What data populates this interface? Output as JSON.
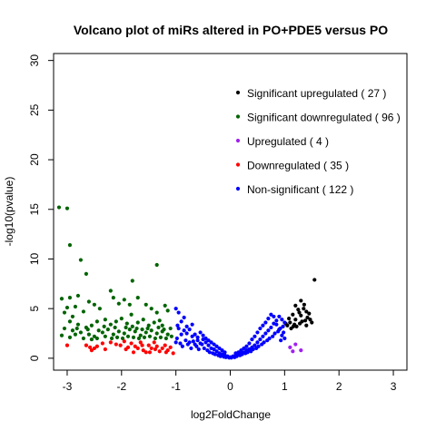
{
  "chart_data": {
    "type": "scatter",
    "title": "Volcano plot of miRs altered in PO+PDE5 versus PO",
    "xlabel": "log2FoldChange",
    "ylabel": "-log10(pvalue)",
    "xlim": [
      -3.25,
      3.25
    ],
    "ylim": [
      -1.2,
      30.7
    ],
    "xticks": [
      -3,
      -2,
      -1,
      0,
      1,
      2,
      3
    ],
    "xtick_labels": [
      "-3",
      "-2",
      "-1",
      "0",
      "1",
      "2",
      "3"
    ],
    "yticks": [
      0,
      5,
      10,
      15,
      20,
      25,
      30
    ],
    "ytick_labels": [
      "0",
      "5",
      "10",
      "15",
      "20",
      "25",
      "30"
    ],
    "grid": false,
    "legend_position": "top-right",
    "series": [
      {
        "name": "Significant upregulated ( 27 )",
        "color": "#000000",
        "points": [
          [
            1.55,
            7.9
          ],
          [
            1.2,
            5.3
          ],
          [
            1.3,
            5.8
          ],
          [
            1.25,
            4.9
          ],
          [
            1.35,
            5.0
          ],
          [
            1.4,
            4.7
          ],
          [
            1.15,
            4.4
          ],
          [
            1.45,
            4.5
          ],
          [
            1.3,
            4.3
          ],
          [
            1.2,
            3.9
          ],
          [
            1.1,
            3.6
          ],
          [
            1.38,
            3.8
          ],
          [
            1.5,
            3.6
          ],
          [
            1.28,
            3.5
          ],
          [
            1.18,
            3.4
          ],
          [
            1.05,
            3.3
          ],
          [
            1.42,
            4.1
          ],
          [
            1.12,
            3.0
          ],
          [
            1.22,
            3.2
          ],
          [
            1.32,
            3.7
          ],
          [
            1.47,
            3.9
          ],
          [
            1.08,
            4.0
          ],
          [
            1.36,
            5.4
          ],
          [
            1.27,
            4.6
          ],
          [
            1.16,
            3.2
          ],
          [
            1.4,
            3.3
          ],
          [
            1.02,
            3.5
          ]
        ]
      },
      {
        "name": "Significant downregulated ( 96 )",
        "color": "#006400",
        "points": [
          [
            -3.15,
            15.2
          ],
          [
            -3.0,
            15.1
          ],
          [
            -2.95,
            11.4
          ],
          [
            -2.75,
            9.9
          ],
          [
            -2.65,
            8.5
          ],
          [
            -1.8,
            7.8
          ],
          [
            -1.35,
            9.4
          ],
          [
            -3.1,
            6.0
          ],
          [
            -2.95,
            6.1
          ],
          [
            -2.8,
            6.3
          ],
          [
            -3.0,
            5.1
          ],
          [
            -2.85,
            5.2
          ],
          [
            -3.05,
            4.6
          ],
          [
            -2.9,
            4.2
          ],
          [
            -2.7,
            4.7
          ],
          [
            -2.6,
            5.7
          ],
          [
            -2.5,
            5.4
          ],
          [
            -2.4,
            5.0
          ],
          [
            -2.2,
            6.8
          ],
          [
            -2.15,
            6.1
          ],
          [
            -2.05,
            5.5
          ],
          [
            -1.95,
            5.9
          ],
          [
            -1.85,
            5.4
          ],
          [
            -1.7,
            6.1
          ],
          [
            -1.55,
            5.4
          ],
          [
            -1.45,
            5.0
          ],
          [
            -1.35,
            4.6
          ],
          [
            -1.2,
            5.3
          ],
          [
            -1.15,
            4.8
          ],
          [
            -2.95,
            3.7
          ],
          [
            -2.8,
            3.4
          ],
          [
            -2.65,
            3.1
          ],
          [
            -2.55,
            3.3
          ],
          [
            -2.45,
            3.7
          ],
          [
            -2.3,
            3.9
          ],
          [
            -2.2,
            3.4
          ],
          [
            -2.1,
            3.7
          ],
          [
            -2.0,
            4.0
          ],
          [
            -1.9,
            3.5
          ],
          [
            -1.8,
            3.2
          ],
          [
            -1.7,
            3.6
          ],
          [
            -1.6,
            3.9
          ],
          [
            -1.5,
            3.3
          ],
          [
            -1.4,
            3.6
          ],
          [
            -1.3,
            3.8
          ],
          [
            -1.25,
            3.3
          ],
          [
            -3.05,
            3.0
          ],
          [
            -2.9,
            2.8
          ],
          [
            -2.75,
            2.6
          ],
          [
            -2.6,
            2.4
          ],
          [
            -2.5,
            2.2
          ],
          [
            -2.35,
            2.6
          ],
          [
            -2.25,
            2.9
          ],
          [
            -2.15,
            2.4
          ],
          [
            -2.05,
            2.7
          ],
          [
            -1.95,
            2.5
          ],
          [
            -1.85,
            2.9
          ],
          [
            -1.75,
            2.7
          ],
          [
            -1.65,
            2.3
          ],
          [
            -1.55,
            2.6
          ],
          [
            -1.45,
            2.8
          ],
          [
            -1.35,
            2.5
          ],
          [
            -1.25,
            2.7
          ],
          [
            -1.15,
            2.4
          ],
          [
            -1.1,
            3.0
          ],
          [
            -3.1,
            2.3
          ],
          [
            -2.95,
            2.1
          ],
          [
            -2.85,
            2.4
          ],
          [
            -2.7,
            2.0
          ],
          [
            -2.55,
            1.9
          ],
          [
            -2.45,
            2.0
          ],
          [
            -2.3,
            2.2
          ],
          [
            -2.18,
            2.0
          ],
          [
            -2.08,
            2.1
          ],
          [
            -1.98,
            2.0
          ],
          [
            -1.88,
            2.2
          ],
          [
            -1.78,
            2.1
          ],
          [
            -1.68,
            2.0
          ],
          [
            -1.58,
            2.1
          ],
          [
            -1.48,
            2.2
          ],
          [
            -1.38,
            2.0
          ],
          [
            -1.28,
            2.1
          ],
          [
            -1.18,
            2.0
          ],
          [
            -1.08,
            2.2
          ],
          [
            -2.62,
            2.9
          ],
          [
            -2.42,
            2.8
          ],
          [
            -2.32,
            3.2
          ],
          [
            -2.12,
            3.1
          ],
          [
            -1.92,
            3.1
          ],
          [
            -1.72,
            3.0
          ],
          [
            -1.52,
            3.0
          ],
          [
            -1.32,
            3.1
          ],
          [
            -1.22,
            2.9
          ],
          [
            -1.62,
            2.9
          ],
          [
            -2.82,
            3.0
          ],
          [
            -1.82,
            4.4
          ]
        ]
      },
      {
        "name": "Upregulated ( 4 )",
        "color": "#A020F0",
        "points": [
          [
            1.1,
            1.1
          ],
          [
            1.2,
            1.4
          ],
          [
            1.3,
            0.8
          ],
          [
            1.15,
            0.7
          ]
        ]
      },
      {
        "name": "Downregulated ( 35 )",
        "color": "#FF0000",
        "points": [
          [
            -3.0,
            1.3
          ],
          [
            -2.65,
            1.3
          ],
          [
            -2.55,
            0.8
          ],
          [
            -2.5,
            1.0
          ],
          [
            -2.45,
            1.2
          ],
          [
            -2.35,
            1.5
          ],
          [
            -2.2,
            1.6
          ],
          [
            -2.1,
            1.4
          ],
          [
            -2.02,
            1.3
          ],
          [
            -1.95,
            1.7
          ],
          [
            -1.88,
            1.1
          ],
          [
            -1.82,
            1.5
          ],
          [
            -1.75,
            1.2
          ],
          [
            -1.7,
            1.0
          ],
          [
            -1.65,
            1.6
          ],
          [
            -1.6,
            0.8
          ],
          [
            -1.55,
            0.6
          ],
          [
            -1.5,
            1.3
          ],
          [
            -1.45,
            1.0
          ],
          [
            -1.4,
            1.6
          ],
          [
            -1.35,
            1.2
          ],
          [
            -1.3,
            0.7
          ],
          [
            -1.25,
            1.0
          ],
          [
            -1.2,
            1.3
          ],
          [
            -1.15,
            0.8
          ],
          [
            -1.1,
            1.1
          ],
          [
            -1.05,
            0.5
          ],
          [
            -2.3,
            0.9
          ],
          [
            -1.92,
            0.9
          ],
          [
            -1.78,
            0.6
          ],
          [
            -1.62,
            1.3
          ],
          [
            -1.48,
            0.6
          ],
          [
            -1.38,
            0.9
          ],
          [
            -1.18,
            0.6
          ],
          [
            -2.58,
            1.1
          ]
        ]
      },
      {
        "name": "Non-significant ( 122 )",
        "color": "#0000FF",
        "points": [
          [
            -1.0,
            5.0
          ],
          [
            -0.95,
            4.6
          ],
          [
            -0.9,
            3.7
          ],
          [
            -0.85,
            4.1
          ],
          [
            -0.8,
            3.2
          ],
          [
            -0.75,
            2.9
          ],
          [
            -0.7,
            3.4
          ],
          [
            -0.65,
            2.4
          ],
          [
            -0.6,
            2.1
          ],
          [
            -0.55,
            2.6
          ],
          [
            -0.5,
            1.9
          ],
          [
            -0.45,
            1.6
          ],
          [
            -0.4,
            1.3
          ],
          [
            -0.35,
            1.0
          ],
          [
            -0.3,
            0.9
          ],
          [
            -0.25,
            0.7
          ],
          [
            -0.2,
            0.5
          ],
          [
            -0.15,
            0.4
          ],
          [
            -0.1,
            0.3
          ],
          [
            -0.05,
            0.2
          ],
          [
            0.0,
            0.1
          ],
          [
            0.05,
            0.2
          ],
          [
            0.1,
            0.3
          ],
          [
            0.15,
            0.4
          ],
          [
            0.2,
            0.5
          ],
          [
            0.25,
            0.6
          ],
          [
            0.3,
            0.8
          ],
          [
            0.35,
            0.9
          ],
          [
            0.4,
            1.1
          ],
          [
            0.45,
            1.3
          ],
          [
            0.5,
            1.6
          ],
          [
            0.55,
            1.9
          ],
          [
            0.6,
            2.2
          ],
          [
            0.65,
            2.5
          ],
          [
            0.7,
            2.8
          ],
          [
            0.75,
            3.1
          ],
          [
            0.8,
            3.5
          ],
          [
            0.85,
            3.8
          ],
          [
            0.9,
            4.2
          ],
          [
            0.95,
            3.9
          ],
          [
            1.0,
            3.6
          ],
          [
            -0.98,
            2.0
          ],
          [
            -0.92,
            1.5
          ],
          [
            -0.88,
            1.2
          ],
          [
            -0.82,
            1.8
          ],
          [
            -0.78,
            1.4
          ],
          [
            -0.72,
            1.0
          ],
          [
            -0.68,
            1.7
          ],
          [
            -0.62,
            1.2
          ],
          [
            -0.58,
            0.9
          ],
          [
            -0.52,
            1.4
          ],
          [
            -0.48,
            1.0
          ],
          [
            -0.42,
            0.8
          ],
          [
            -0.38,
            0.6
          ],
          [
            -0.32,
            0.5
          ],
          [
            -0.28,
            0.4
          ],
          [
            -0.22,
            0.3
          ],
          [
            -0.18,
            0.2
          ],
          [
            -0.12,
            0.15
          ],
          [
            -0.08,
            0.1
          ],
          [
            -0.02,
            0.05
          ],
          [
            0.02,
            0.05
          ],
          [
            0.08,
            0.1
          ],
          [
            0.12,
            0.2
          ],
          [
            0.18,
            0.3
          ],
          [
            0.22,
            0.4
          ],
          [
            0.28,
            0.5
          ],
          [
            0.32,
            0.6
          ],
          [
            0.38,
            0.7
          ],
          [
            0.42,
            0.9
          ],
          [
            0.48,
            1.0
          ],
          [
            0.52,
            1.2
          ],
          [
            0.58,
            1.4
          ],
          [
            0.62,
            1.6
          ],
          [
            0.68,
            1.8
          ],
          [
            0.72,
            2.0
          ],
          [
            0.78,
            2.2
          ],
          [
            0.82,
            2.5
          ],
          [
            0.88,
            2.7
          ],
          [
            0.92,
            3.0
          ],
          [
            0.98,
            2.6
          ],
          [
            0.55,
            3.0
          ],
          [
            0.6,
            3.3
          ],
          [
            0.65,
            3.6
          ],
          [
            0.7,
            4.0
          ],
          [
            0.75,
            4.4
          ],
          [
            0.8,
            4.2
          ],
          [
            0.85,
            3.4
          ],
          [
            0.9,
            2.9
          ],
          [
            0.95,
            2.3
          ],
          [
            1.0,
            2.0
          ],
          [
            0.45,
            2.2
          ],
          [
            0.5,
            2.6
          ],
          [
            0.35,
            1.5
          ],
          [
            0.4,
            1.9
          ],
          [
            0.3,
            1.2
          ],
          [
            0.25,
            1.0
          ],
          [
            0.2,
            0.8
          ],
          [
            0.15,
            0.6
          ],
          [
            0.1,
            0.5
          ],
          [
            -0.1,
            0.6
          ],
          [
            -0.15,
            0.8
          ],
          [
            -0.2,
            1.0
          ],
          [
            -0.25,
            1.2
          ],
          [
            -0.3,
            1.4
          ],
          [
            -0.35,
            1.6
          ],
          [
            -0.4,
            1.8
          ],
          [
            -0.45,
            2.0
          ],
          [
            -0.5,
            2.3
          ],
          [
            -0.55,
            1.5
          ],
          [
            -0.6,
            1.8
          ],
          [
            -0.65,
            1.4
          ],
          [
            -0.7,
            2.2
          ],
          [
            -0.75,
            1.6
          ],
          [
            -0.8,
            2.5
          ],
          [
            -0.85,
            2.8
          ],
          [
            -0.9,
            2.4
          ],
          [
            -0.95,
            3.0
          ],
          [
            -1.0,
            1.6
          ],
          [
            -0.97,
            3.3
          ],
          [
            0.97,
            3.2
          ],
          [
            0.93,
            1.8
          ]
        ]
      }
    ]
  }
}
